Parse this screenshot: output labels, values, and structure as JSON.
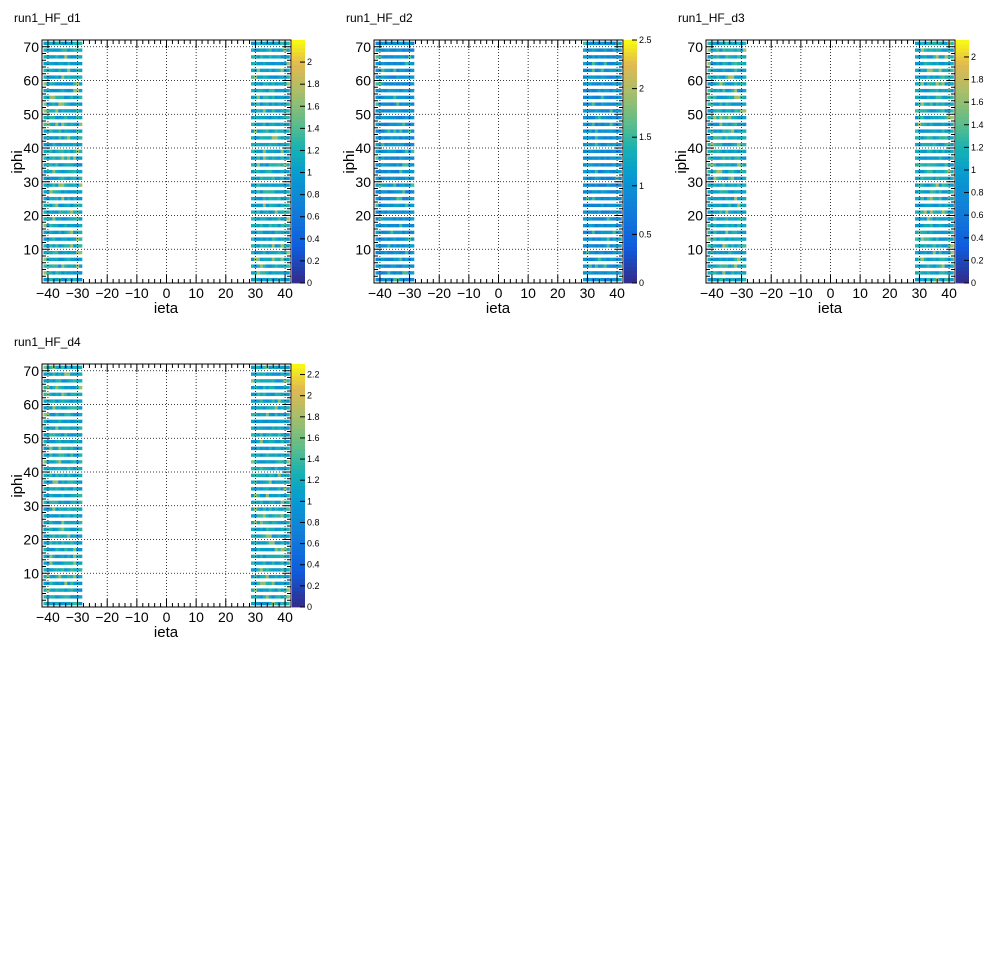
{
  "chart_data": [
    {
      "type": "heatmap",
      "title": "run1_HF_d1",
      "xlabel": "ieta",
      "ylabel": "iphi",
      "xlim": [
        -42,
        42
      ],
      "ylim": [
        0,
        72
      ],
      "x_ticks": [
        -40,
        -30,
        -20,
        -10,
        0,
        10,
        20,
        30,
        40
      ],
      "y_ticks": [
        10,
        20,
        30,
        40,
        50,
        60,
        70
      ],
      "zlim": [
        0,
        2.2
      ],
      "z_ticks": [
        0,
        0.2,
        0.4,
        0.6,
        0.8,
        1,
        1.2,
        1.4,
        1.6,
        1.8,
        2
      ],
      "ieta_bands": [
        [
          -41,
          -29
        ],
        [
          29,
          41
        ]
      ],
      "iphi_filled": "odd",
      "typical_value": 1.1,
      "grid": true
    },
    {
      "type": "heatmap",
      "title": "run1_HF_d2",
      "xlabel": "ieta",
      "ylabel": "iphi",
      "xlim": [
        -42,
        42
      ],
      "ylim": [
        0,
        72
      ],
      "x_ticks": [
        -40,
        -30,
        -20,
        -10,
        0,
        10,
        20,
        30,
        40
      ],
      "y_ticks": [
        10,
        20,
        30,
        40,
        50,
        60,
        70
      ],
      "zlim": [
        0,
        2.5
      ],
      "z_ticks": [
        0,
        0.5,
        1,
        1.5,
        2,
        2.5
      ],
      "ieta_bands": [
        [
          -41,
          -29
        ],
        [
          29,
          41
        ]
      ],
      "iphi_filled": "odd",
      "typical_value": 1.0,
      "grid": true
    },
    {
      "type": "heatmap",
      "title": "run1_HF_d3",
      "xlabel": "ieta",
      "ylabel": "iphi",
      "xlim": [
        -42,
        42
      ],
      "ylim": [
        0,
        72
      ],
      "x_ticks": [
        -40,
        -30,
        -20,
        -10,
        0,
        10,
        20,
        30,
        40
      ],
      "y_ticks": [
        10,
        20,
        30,
        40,
        50,
        60,
        70
      ],
      "zlim": [
        0,
        2.15
      ],
      "z_ticks": [
        0,
        0.2,
        0.4,
        0.6,
        0.8,
        1,
        1.2,
        1.4,
        1.6,
        1.8,
        2
      ],
      "ieta_bands": [
        [
          -41,
          -29
        ],
        [
          29,
          41
        ]
      ],
      "iphi_filled": "odd",
      "typical_value": 1.1,
      "grid": true
    },
    {
      "type": "heatmap",
      "title": "run1_HF_d4",
      "xlabel": "ieta",
      "ylabel": "iphi",
      "xlim": [
        -42,
        42
      ],
      "ylim": [
        0,
        72
      ],
      "x_ticks": [
        -40,
        -30,
        -20,
        -10,
        0,
        10,
        20,
        30,
        40
      ],
      "y_ticks": [
        10,
        20,
        30,
        40,
        50,
        60,
        70
      ],
      "zlim": [
        0,
        2.3
      ],
      "z_ticks": [
        0,
        0.2,
        0.4,
        0.6,
        0.8,
        1,
        1.2,
        1.4,
        1.6,
        1.8,
        2,
        2.2
      ],
      "ieta_bands": [
        [
          -41,
          -29
        ],
        [
          29,
          41
        ]
      ],
      "iphi_filled": "odd",
      "typical_value": 1.15,
      "grid": true
    }
  ]
}
